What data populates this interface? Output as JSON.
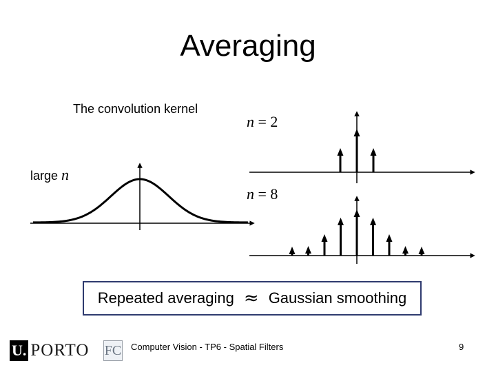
{
  "slide": {
    "title": "Averaging",
    "kernel_caption": "The convolution kernel",
    "large_label": "large",
    "n_symbol": "n",
    "label_n2": {
      "var": "n",
      "eq": " = 2"
    },
    "label_n8": {
      "var": "n",
      "eq": " = 8"
    },
    "statement_left": "Repeated averaging",
    "approx_symbol": "≈",
    "statement_right": "Gaussian smoothing",
    "footer": "Computer Vision - TP6 - Spatial Filters",
    "page_number": "9",
    "logo": {
      "u": "U.",
      "porto": "PORTO",
      "fc": "FC"
    }
  },
  "chart_data": [
    {
      "type": "line",
      "shape": "gaussian curve",
      "note": "large n"
    },
    {
      "type": "stem",
      "n": 2,
      "values": [
        0.25,
        0.5,
        0.25
      ]
    },
    {
      "type": "stem",
      "n": 8,
      "values": [
        0.004,
        0.031,
        0.109,
        0.219,
        0.273,
        0.219,
        0.109,
        0.031,
        0.004
      ]
    }
  ]
}
